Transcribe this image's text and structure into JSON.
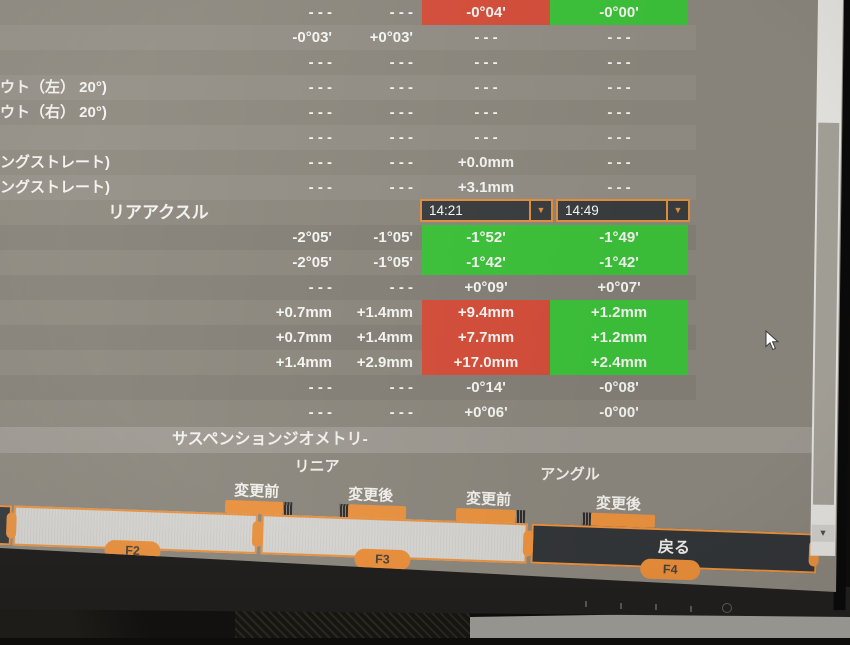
{
  "colors": {
    "accent": "#EF9540",
    "good": "#3EC63B",
    "bad": "#D94F3B"
  },
  "table": {
    "front_rows": [
      {
        "label": "",
        "c1": "- - -",
        "c2": "- - -",
        "c3": "-0°04'",
        "c4": "-0°00'",
        "c3s": "bad",
        "c4s": "good"
      },
      {
        "label": "",
        "c1": "-0°03'",
        "c2": "+0°03'",
        "c3": "- - -",
        "c4": "- - -",
        "c3s": "",
        "c4s": ""
      },
      {
        "label": "",
        "c1": "- - -",
        "c2": "- - -",
        "c3": "- - -",
        "c4": "- - -",
        "c3s": "",
        "c4s": ""
      },
      {
        "label": "ウト（左） 20°)",
        "c1": "- - -",
        "c2": "- - -",
        "c3": "- - -",
        "c4": "- - -",
        "c3s": "",
        "c4s": ""
      },
      {
        "label": "ウト（右） 20°)",
        "c1": "- - -",
        "c2": "- - -",
        "c3": "- - -",
        "c4": "- - -",
        "c3s": "",
        "c4s": ""
      },
      {
        "label": "",
        "c1": "- - -",
        "c2": "- - -",
        "c3": "- - -",
        "c4": "- - -",
        "c3s": "",
        "c4s": ""
      },
      {
        "label": "ングストレート)",
        "c1": "- - -",
        "c2": "- - -",
        "c3": "+0.0mm",
        "c4": "- - -",
        "c3s": "",
        "c4s": ""
      },
      {
        "label": "ングストレート)",
        "c1": "- - -",
        "c2": "- - -",
        "c3": "+3.1mm",
        "c4": "- - -",
        "c3s": "",
        "c4s": ""
      }
    ],
    "rear_section": {
      "label": "リアアクスル",
      "time_left": "14:21",
      "time_right": "14:49",
      "dropdown_arrow": "▼"
    },
    "rear_rows": [
      {
        "label": "",
        "c1": "-2°05'",
        "c2": "-1°05'",
        "c3": "-1°52'",
        "c4": "-1°49'",
        "c3s": "good",
        "c4s": "good"
      },
      {
        "label": "",
        "c1": "-2°05'",
        "c2": "-1°05'",
        "c3": "-1°42'",
        "c4": "-1°42'",
        "c3s": "good",
        "c4s": "good"
      },
      {
        "label": "",
        "c1": "- - -",
        "c2": "- - -",
        "c3": "+0°09'",
        "c4": "+0°07'",
        "c3s": "",
        "c4s": ""
      },
      {
        "label": "",
        "c1": "+0.7mm",
        "c2": "+1.4mm",
        "c3": "+9.4mm",
        "c4": "+1.2mm",
        "c3s": "bad",
        "c4s": "good"
      },
      {
        "label": "",
        "c1": "+0.7mm",
        "c2": "+1.4mm",
        "c3": "+7.7mm",
        "c4": "+1.2mm",
        "c3s": "bad",
        "c4s": "good"
      },
      {
        "label": "",
        "c1": "+1.4mm",
        "c2": "+2.9mm",
        "c3": "+17.0mm",
        "c4": "+2.4mm",
        "c3s": "bad",
        "c4s": "good"
      },
      {
        "label": "",
        "c1": "- - -",
        "c2": "- - -",
        "c3": "-0°14'",
        "c4": "-0°08'",
        "c3s": "",
        "c4s": ""
      },
      {
        "label": "",
        "c1": "- - -",
        "c2": "- - -",
        "c3": "+0°06'",
        "c4": "-0°00'",
        "c3s": "",
        "c4s": ""
      }
    ],
    "suspension_header": "サスペンションジオメトリ-"
  },
  "footer": {
    "group_left": "リニア",
    "group_right": "アングル",
    "col_headers": [
      "変更前",
      "変更後",
      "変更前",
      "変更後"
    ],
    "back_label": "戻る",
    "fkeys": [
      "F2",
      "F3",
      "F4"
    ],
    "scroll_arrow": "▼"
  }
}
